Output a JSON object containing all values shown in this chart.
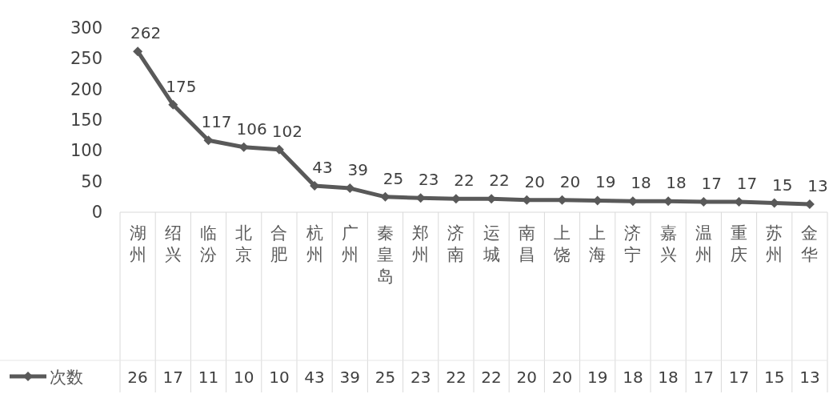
{
  "chart_data": {
    "type": "line",
    "categories": [
      "湖州",
      "绍兴",
      "临汾",
      "北京",
      "合肥",
      "杭州",
      "广州",
      "秦皇岛",
      "郑州",
      "济南",
      "运城",
      "南昌",
      "上饶",
      "上海",
      "济宁",
      "嘉兴",
      "温州",
      "重庆",
      "苏州",
      "金华"
    ],
    "series": [
      {
        "name": "次数",
        "color": "#595959",
        "values": [
          262,
          175,
          117,
          106,
          102,
          43,
          39,
          25,
          23,
          22,
          22,
          20,
          20,
          19,
          18,
          18,
          17,
          17,
          15,
          13
        ],
        "value_labels": [
          "262",
          "175",
          "117",
          "106",
          "102",
          "43",
          "39",
          "25",
          "23",
          "22",
          "22",
          "20",
          "20",
          "19",
          "18",
          "18",
          "17",
          "17",
          "15",
          "13"
        ]
      }
    ],
    "annotations": [
      "26",
      "17",
      "11",
      "10",
      "10",
      "43",
      "39",
      "25",
      "23",
      "22",
      "22",
      "20",
      "20",
      "19",
      "18",
      "18",
      "17",
      "17",
      "15",
      "13"
    ],
    "ylim": [
      0,
      300
    ],
    "yticks": [
      0,
      50,
      100,
      150,
      200,
      250,
      300
    ],
    "marker": "diamond",
    "line_style": "solid",
    "legend": "bottom left",
    "grid": false
  }
}
